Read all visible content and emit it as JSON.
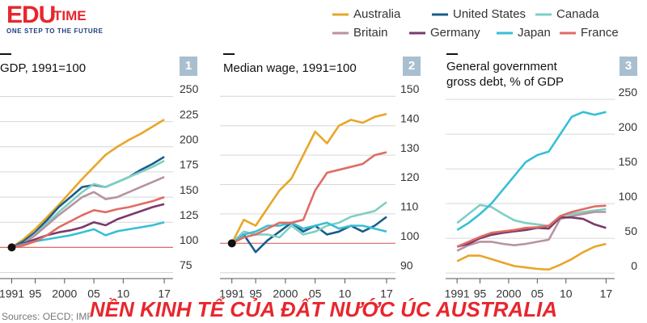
{
  "logo": {
    "brand": "EDU",
    "brand2": "TIME",
    "tagline": "ONE STEP TO THE FUTURE"
  },
  "source": "Sources: OECD; IMF",
  "banner": "NỀN KINH TẾ CỦA ĐẤT NƯỚC ÚC AUSTRALIA",
  "chart_data": [
    {
      "type": "line",
      "panel": "1",
      "title": "GDP, 1991=100",
      "baseline": 100,
      "x": [
        1991,
        1993,
        1995,
        1997,
        1999,
        2001,
        2003,
        2005,
        2007,
        2009,
        2011,
        2013,
        2015,
        2017
      ],
      "xlim": [
        1989,
        2018.5
      ],
      "xticks": [
        {
          "value": 1991,
          "label": "1991"
        },
        {
          "value": 1995,
          "label": "95"
        },
        {
          "value": 2000,
          "label": "2000"
        },
        {
          "value": 2005,
          "label": "05"
        },
        {
          "value": 2010,
          "label": "10"
        },
        {
          "value": 2017,
          "label": "17"
        }
      ],
      "ylim": [
        69,
        256
      ],
      "yticks": [
        75,
        100,
        125,
        150,
        175,
        200,
        225,
        250
      ],
      "grid": true,
      "series": [
        {
          "name": "Australia",
          "color": "#e8a628",
          "values": [
            100,
            108,
            118,
            130,
            142,
            155,
            168,
            180,
            192,
            200,
            207,
            213,
            220,
            227
          ]
        },
        {
          "name": "United States",
          "color": "#1a5c8c",
          "values": [
            100,
            106,
            115,
            127,
            140,
            150,
            160,
            162,
            160,
            165,
            170,
            177,
            183,
            190
          ]
        },
        {
          "name": "Canada",
          "color": "#7fcfc4",
          "values": [
            100,
            104,
            113,
            124,
            135,
            145,
            155,
            163,
            160,
            165,
            170,
            175,
            180,
            186
          ]
        },
        {
          "name": "Britain",
          "color": "#b7939f",
          "values": [
            100,
            104,
            112,
            122,
            132,
            141,
            150,
            155,
            148,
            150,
            155,
            160,
            165,
            170
          ]
        },
        {
          "name": "Germany",
          "color": "#7a3b6a",
          "values": [
            100,
            104,
            108,
            112,
            115,
            117,
            120,
            125,
            122,
            128,
            132,
            136,
            140,
            143
          ]
        },
        {
          "name": "Japan",
          "color": "#37bfd6",
          "values": [
            100,
            103,
            106,
            108,
            110,
            112,
            115,
            118,
            112,
            116,
            118,
            120,
            122,
            125
          ]
        },
        {
          "name": "France",
          "color": "#e06b64",
          "values": [
            100,
            102,
            106,
            112,
            120,
            126,
            132,
            137,
            135,
            138,
            140,
            143,
            146,
            150
          ]
        }
      ]
    },
    {
      "type": "line",
      "panel": "2",
      "title": "Median wage, 1991=100",
      "baseline": 100,
      "x": [
        1991,
        1993,
        1995,
        1997,
        1999,
        2001,
        2003,
        2005,
        2007,
        2009,
        2011,
        2013,
        2015,
        2017
      ],
      "xlim": [
        1989,
        2018.5
      ],
      "xticks": [
        {
          "value": 1991,
          "label": "1991"
        },
        {
          "value": 1995,
          "label": "95"
        },
        {
          "value": 2000,
          "label": "2000"
        },
        {
          "value": 2005,
          "label": "05"
        },
        {
          "value": 2010,
          "label": "10"
        },
        {
          "value": 2017,
          "label": "17"
        }
      ],
      "ylim": [
        88,
        152
      ],
      "yticks": [
        90,
        100,
        110,
        120,
        130,
        140,
        150
      ],
      "grid": true,
      "series": [
        {
          "name": "Australia",
          "color": "#e8a628",
          "values": [
            100,
            108,
            106,
            112,
            118,
            122,
            130,
            138,
            134,
            140,
            142,
            141,
            143,
            144
          ]
        },
        {
          "name": "United States",
          "color": "#1a5c8c",
          "values": [
            100,
            103,
            97,
            101,
            104,
            107,
            104,
            106,
            103,
            104,
            106,
            104,
            106,
            109
          ]
        },
        {
          "name": "Canada",
          "color": "#7fcfc4",
          "values": [
            100,
            104,
            103,
            103,
            102,
            106,
            103,
            104,
            106,
            107,
            109,
            110,
            111,
            114
          ]
        },
        {
          "name": "Japan",
          "color": "#37bfd6",
          "values": [
            100,
            103,
            104,
            106,
            106,
            107,
            105,
            106,
            107,
            105,
            106,
            106,
            105,
            104
          ]
        },
        {
          "name": "France",
          "color": "#e06b64",
          "values": [
            100,
            102,
            103,
            105,
            107,
            107,
            108,
            118,
            124,
            125,
            126,
            127,
            130,
            131
          ]
        }
      ]
    },
    {
      "type": "line",
      "panel": "3",
      "title": "General government gross debt, % of GDP",
      "x": [
        1991,
        1993,
        1995,
        1997,
        1999,
        2001,
        2003,
        2005,
        2007,
        2009,
        2011,
        2013,
        2015,
        2017
      ],
      "xlim": [
        1989,
        2018.5
      ],
      "xticks": [
        {
          "value": 1991,
          "label": "1991"
        },
        {
          "value": 1995,
          "label": "95"
        },
        {
          "value": 2000,
          "label": "2000"
        },
        {
          "value": 2005,
          "label": "05"
        },
        {
          "value": 2010,
          "label": "10"
        },
        {
          "value": 2017,
          "label": "17"
        }
      ],
      "ylim": [
        -8,
        263
      ],
      "yticks": [
        0,
        50,
        100,
        150,
        200,
        250
      ],
      "grid": true,
      "series": [
        {
          "name": "Australia",
          "color": "#e8a628",
          "values": [
            17,
            25,
            25,
            20,
            15,
            10,
            8,
            6,
            5,
            12,
            20,
            30,
            38,
            42
          ]
        },
        {
          "name": "Canada",
          "color": "#7fcfc4",
          "values": [
            72,
            85,
            98,
            95,
            85,
            76,
            72,
            70,
            68,
            82,
            85,
            88,
            90,
            92
          ]
        },
        {
          "name": "Britain",
          "color": "#b7939f",
          "values": [
            32,
            40,
            45,
            45,
            42,
            40,
            42,
            45,
            48,
            78,
            82,
            85,
            88,
            88
          ]
        },
        {
          "name": "Germany",
          "color": "#7a3b6a",
          "values": [
            38,
            42,
            50,
            55,
            58,
            60,
            62,
            65,
            64,
            80,
            80,
            78,
            70,
            65
          ]
        },
        {
          "name": "Japan",
          "color": "#37bfd6",
          "values": [
            62,
            72,
            85,
            100,
            120,
            140,
            160,
            170,
            175,
            200,
            225,
            232,
            228,
            232
          ]
        },
        {
          "name": "France",
          "color": "#e06b64",
          "values": [
            38,
            45,
            52,
            58,
            60,
            62,
            65,
            66,
            68,
            82,
            88,
            92,
            96,
            97
          ]
        }
      ]
    }
  ]
}
